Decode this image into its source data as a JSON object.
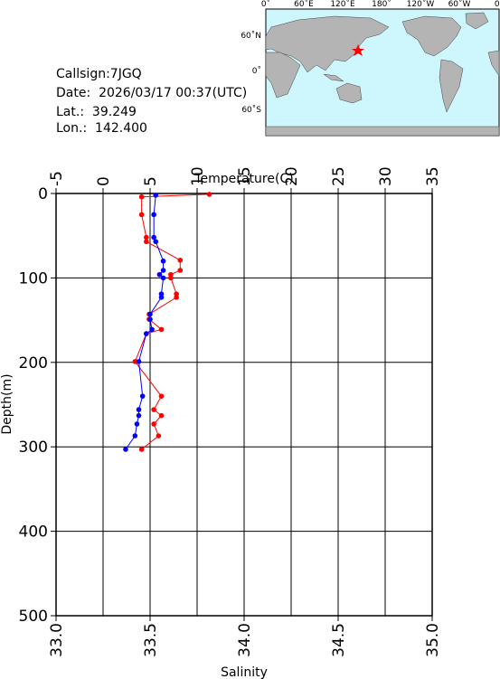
{
  "info": {
    "callsign": "Callsign:7JGQ",
    "date": "Date:  2026/03/17 00:37(UTC)",
    "lat": "Lat.:  39.249",
    "lon": "Lon.:  142.400"
  },
  "map": {
    "top_labels": [
      "0˚",
      "60˚E",
      "120˚E",
      "180˚",
      "120˚W",
      "60˚W",
      "0˚"
    ],
    "left_labels": [
      "60˚N",
      "0˚",
      "60˚S"
    ]
  },
  "chart_data": {
    "type": "profile",
    "xlabel": "Temperature(C)",
    "x2label": "Salinity",
    "ylabel": "Depth(m)",
    "xlim": [
      -5,
      35
    ],
    "xticks": [
      -5,
      0,
      5,
      10,
      15,
      20,
      25,
      30,
      35
    ],
    "x2lim": [
      33,
      35
    ],
    "x2ticks": [
      {
        "value": 33,
        "label": "33.0"
      },
      {
        "value": 33.5,
        "label": "33.5"
      },
      {
        "value": 34,
        "label": "34.0"
      },
      {
        "value": 34.5,
        "label": "34.5"
      },
      {
        "value": 35,
        "label": "35.0"
      }
    ],
    "ylim": [
      500,
      0
    ],
    "yticks": [
      0,
      100,
      200,
      300,
      400,
      500
    ],
    "grid": true,
    "depth": [
      2,
      4,
      25,
      52,
      57,
      80,
      91,
      96,
      100,
      119,
      123,
      143,
      149,
      161,
      166,
      199,
      240,
      256,
      263,
      273,
      287,
      303
    ],
    "series": [
      {
        "name": "Temperature",
        "color": "#ff0000",
        "axis": "x",
        "depth": [
          1,
          4,
          25,
          52,
          57,
          79,
          91,
          96,
          100,
          119,
          123,
          143,
          149,
          161,
          166,
          199,
          240,
          256,
          263,
          273,
          287,
          303
        ],
        "values": [
          11.3,
          4.1,
          4.1,
          4.6,
          4.6,
          8.2,
          8.2,
          7.2,
          7.2,
          7.8,
          7.8,
          4.9,
          4.9,
          6.2,
          4.6,
          3.4,
          6.2,
          5.4,
          6.2,
          5.4,
          5.9,
          4.1
        ]
      },
      {
        "name": "Salinity",
        "color": "#0000ff",
        "axis": "x2",
        "depth": [
          2,
          25,
          52,
          57,
          80,
          91,
          96,
          100,
          119,
          123,
          143,
          149,
          161,
          166,
          199,
          240,
          256,
          263,
          273,
          287,
          303
        ],
        "values": [
          33.53,
          33.52,
          33.52,
          33.53,
          33.57,
          33.57,
          33.55,
          33.57,
          33.56,
          33.56,
          33.5,
          33.5,
          33.51,
          33.48,
          33.44,
          33.46,
          33.44,
          33.44,
          33.43,
          33.42,
          33.37
        ]
      }
    ]
  }
}
